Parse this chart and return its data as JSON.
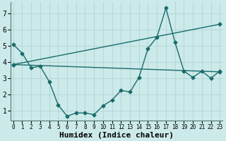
{
  "xlabel": "Humidex (Indice chaleur)",
  "bg_color": "#cceaea",
  "grid_color": "#b8d8d8",
  "line_color": "#1a6b6b",
  "x_ticks": [
    0,
    1,
    2,
    3,
    4,
    5,
    6,
    7,
    8,
    9,
    10,
    11,
    12,
    13,
    14,
    15,
    16,
    17,
    18,
    19,
    20,
    21,
    22,
    23
  ],
  "y_ticks": [
    1,
    2,
    3,
    4,
    5,
    6,
    7
  ],
  "xlim": [
    -0.3,
    23.3
  ],
  "ylim": [
    0.4,
    7.7
  ],
  "series1_x": [
    0,
    1,
    2,
    3,
    4,
    5,
    6,
    7,
    8,
    9,
    10,
    11,
    12,
    13,
    14,
    15,
    16,
    17,
    18,
    19,
    20,
    21,
    22,
    23
  ],
  "series1_y": [
    5.1,
    4.55,
    3.65,
    3.75,
    2.8,
    1.35,
    0.65,
    0.85,
    0.85,
    0.75,
    1.3,
    1.65,
    2.25,
    2.15,
    3.05,
    4.85,
    5.55,
    7.35,
    5.25,
    3.45,
    3.05,
    3.45,
    3.0,
    3.45
  ],
  "series2_x": [
    0,
    23
  ],
  "series2_y": [
    3.85,
    3.4
  ],
  "series3_x": [
    0,
    23
  ],
  "series3_y": [
    3.85,
    6.35
  ],
  "marker": "D",
  "marker_size": 2.5,
  "line_width": 1.0,
  "font_family": "monospace",
  "xlabel_fontsize": 8,
  "tick_fontsize_x": 5.5,
  "tick_fontsize_y": 7
}
